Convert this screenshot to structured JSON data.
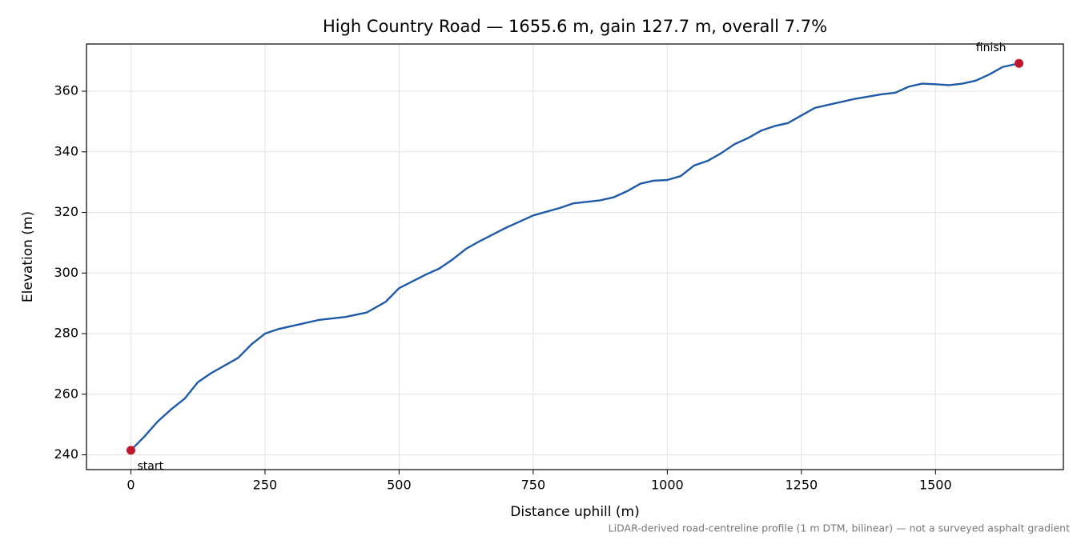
{
  "chart_data": {
    "type": "line",
    "title": "High Country Road — 1655.6 m, gain 127.7 m, overall 7.7%",
    "xlabel": "Distance uphill (m)",
    "ylabel": "Elevation (m)",
    "footnote": "LiDAR-derived road-centreline profile (1 m DTM, bilinear) — not a surveyed asphalt gradient",
    "x": [
      0,
      25,
      50,
      75,
      100,
      125,
      150,
      175,
      200,
      225,
      250,
      275,
      300,
      350,
      400,
      440,
      475,
      500,
      550,
      575,
      600,
      625,
      650,
      700,
      750,
      800,
      825,
      875,
      900,
      925,
      950,
      975,
      1000,
      1025,
      1050,
      1075,
      1100,
      1125,
      1150,
      1175,
      1200,
      1225,
      1250,
      1275,
      1300,
      1350,
      1400,
      1425,
      1450,
      1475,
      1500,
      1525,
      1550,
      1575,
      1600,
      1625,
      1655.6
    ],
    "series": [
      {
        "name": "Elevation",
        "color": "#1f5aa6",
        "values": [
          241.5,
          246,
          251,
          255,
          258.5,
          264,
          267,
          269.5,
          272,
          276.5,
          280,
          281.5,
          282.5,
          284.5,
          285.5,
          287,
          290.5,
          295,
          299.5,
          301.5,
          304.5,
          308,
          310.5,
          315,
          319,
          321.5,
          323,
          324,
          325,
          327,
          329.5,
          330.5,
          330.7,
          332,
          335.5,
          337,
          339.5,
          342.5,
          344.5,
          347,
          348.5,
          349.5,
          352,
          354.5,
          355.5,
          357.5,
          359,
          359.5,
          361.5,
          362.5,
          362.3,
          362,
          362.5,
          363.5,
          365.5,
          368,
          369.2
        ]
      }
    ],
    "markers": [
      {
        "label": "start",
        "x": 0,
        "y": 241.5,
        "color": "#c0182a"
      },
      {
        "label": "finish",
        "x": 1655.6,
        "y": 369.2,
        "color": "#c0182a"
      }
    ],
    "xlim": [
      -82.78,
      1738.38
    ],
    "ylim": [
      235.12,
      375.59
    ],
    "xticks": [
      0,
      250,
      500,
      750,
      1000,
      1250,
      1500
    ],
    "yticks": [
      240,
      260,
      280,
      300,
      320,
      340,
      360
    ],
    "grid": true
  }
}
